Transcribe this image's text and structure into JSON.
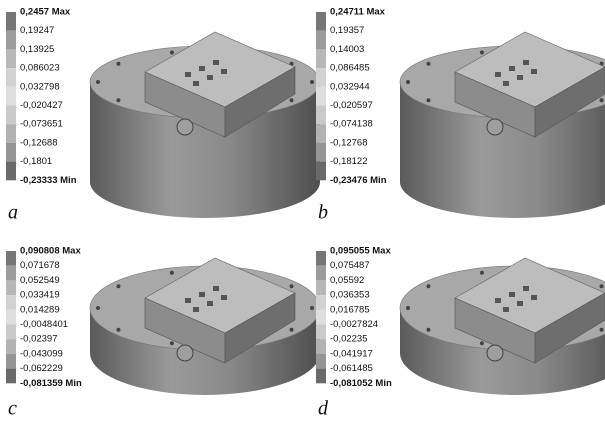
{
  "panels": [
    {
      "caption": "a",
      "legend": [
        "0,2457 Max",
        "0,19247",
        "0,13925",
        "0,086023",
        "0,032798",
        "-0,020427",
        "-0,073651",
        "-0,12688",
        "-0,1801",
        "-0,23333 Min"
      ]
    },
    {
      "caption": "b",
      "legend": [
        "0,24711 Max",
        "0,19357",
        "0,14003",
        "0,086485",
        "0,032944",
        "-0,020597",
        "-0,074138",
        "-0,12768",
        "-0,18122",
        "-0,23476 Min"
      ]
    },
    {
      "caption": "c",
      "legend": [
        "0,090808 Max",
        "0,071678",
        "0,052549",
        "0,033419",
        "0,014289",
        "-0,0048401",
        "-0,02397",
        "-0,043099",
        "-0,062229",
        "-0,081359 Min"
      ]
    },
    {
      "caption": "d",
      "legend": [
        "0,095055 Max",
        "0,075487",
        "0,05592",
        "0,036353",
        "0,016785",
        "-0,0027824",
        "-0,02235",
        "-0,041917",
        "-0,061485",
        "-0,081052 Min"
      ]
    }
  ]
}
